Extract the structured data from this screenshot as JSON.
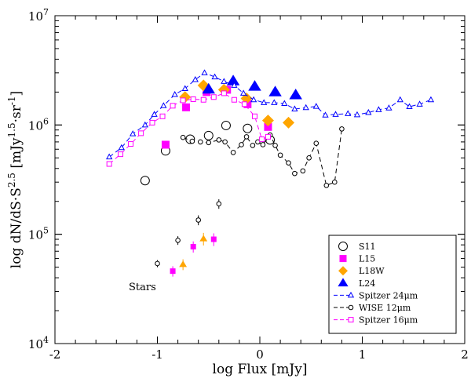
{
  "chart_data": {
    "type": "scatter",
    "xlabel": "log Flux [mJy]",
    "ylabel_parts": [
      "log dN/dS·S",
      "2.5",
      " [mJy",
      "1.5",
      "·sr",
      "-1",
      "]"
    ],
    "xlim": [
      -2,
      2
    ],
    "ylim_log10": [
      4,
      7
    ],
    "x_ticks": [
      {
        "value": -2,
        "label": "-2"
      },
      {
        "value": -1,
        "label": "-1"
      },
      {
        "value": 0,
        "label": "0"
      },
      {
        "value": 1,
        "label": "1"
      },
      {
        "value": 2,
        "label": "2"
      }
    ],
    "y_ticks": [
      {
        "exp": 4,
        "base": "10",
        "sup": "4"
      },
      {
        "exp": 5,
        "base": "10",
        "sup": "5"
      },
      {
        "exp": 6,
        "base": "10",
        "sup": "6"
      },
      {
        "exp": 7,
        "base": "10",
        "sup": "7"
      }
    ],
    "annotations": [
      {
        "text": "Stars",
        "x": -1.3,
        "y": 33000
      }
    ],
    "colors": {
      "magenta": "#ff00ff",
      "orange": "#ffa500",
      "blue": "#0000ff",
      "black": "#000000"
    },
    "series": [
      {
        "name": "S11",
        "kind": "markers",
        "marker": "circle-open",
        "color": "#000000",
        "size": 11,
        "points": [
          [
            -1.12,
            310000
          ],
          [
            -0.92,
            580000
          ],
          [
            -0.68,
            740000
          ],
          [
            -0.5,
            800000
          ],
          [
            -0.33,
            990000
          ],
          [
            -0.12,
            930000
          ],
          [
            0.1,
            730000
          ]
        ]
      },
      {
        "name": "L15",
        "kind": "markers",
        "marker": "square",
        "color": "#ff00ff",
        "size": 10,
        "points": [
          [
            -0.92,
            660000
          ],
          [
            -0.72,
            1450000
          ],
          [
            -0.52,
            2000000
          ],
          [
            -0.32,
            2100000
          ],
          [
            -0.12,
            1550000
          ],
          [
            0.08,
            960000
          ]
        ]
      },
      {
        "name": "L18W",
        "kind": "markers",
        "marker": "diamond",
        "color": "#ffa500",
        "size": 15,
        "points": [
          [
            -0.73,
            1800000
          ],
          [
            -0.55,
            2300000
          ],
          [
            -0.35,
            2100000
          ],
          [
            -0.13,
            1750000
          ],
          [
            0.08,
            1100000
          ],
          [
            0.28,
            1050000
          ]
        ]
      },
      {
        "name": "L24",
        "kind": "markers",
        "marker": "triangle-filled",
        "color": "#0000ff",
        "size": 15,
        "points": [
          [
            -0.5,
            2120000
          ],
          [
            -0.26,
            2520000
          ],
          [
            -0.05,
            2250000
          ],
          [
            0.15,
            2000000
          ],
          [
            0.35,
            1880000
          ]
        ]
      },
      {
        "name": "Spitzer 24μm",
        "kind": "line",
        "marker": "triangle-open",
        "color": "#0000ff",
        "dash": "6,4",
        "points": [
          [
            -1.47,
            510000
          ],
          [
            -1.35,
            620000
          ],
          [
            -1.24,
            830000
          ],
          [
            -1.12,
            1000000
          ],
          [
            -1.03,
            1250000
          ],
          [
            -0.94,
            1500000
          ],
          [
            -0.83,
            1900000
          ],
          [
            -0.73,
            2150000
          ],
          [
            -0.63,
            2600000
          ],
          [
            -0.54,
            3000000
          ],
          [
            -0.44,
            2750000
          ],
          [
            -0.35,
            2500000
          ],
          [
            -0.25,
            2300000
          ],
          [
            -0.16,
            1950000
          ],
          [
            -0.06,
            1700000
          ],
          [
            0.04,
            1600000
          ],
          [
            0.14,
            1600000
          ],
          [
            0.24,
            1570000
          ],
          [
            0.34,
            1400000
          ],
          [
            0.45,
            1440000
          ],
          [
            0.55,
            1480000
          ],
          [
            0.64,
            1230000
          ],
          [
            0.74,
            1250000
          ],
          [
            0.86,
            1270000
          ],
          [
            0.95,
            1240000
          ],
          [
            1.06,
            1300000
          ],
          [
            1.16,
            1380000
          ],
          [
            1.26,
            1430000
          ],
          [
            1.37,
            1700000
          ],
          [
            1.46,
            1470000
          ],
          [
            1.56,
            1550000
          ],
          [
            1.67,
            1700000
          ]
        ]
      },
      {
        "name": "WISE 12μm",
        "kind": "line",
        "marker": "circle-open-small",
        "color": "#000000",
        "dash": "6,4",
        "points": [
          [
            -0.75,
            770000
          ],
          [
            -0.66,
            710000
          ],
          [
            -0.58,
            700000
          ],
          [
            -0.5,
            690000
          ],
          [
            -0.4,
            730000
          ],
          [
            -0.34,
            700000
          ],
          [
            -0.26,
            560000
          ],
          [
            -0.18,
            660000
          ],
          [
            -0.13,
            780000
          ],
          [
            -0.07,
            650000
          ],
          [
            -0.02,
            700000
          ],
          [
            0.03,
            660000
          ],
          [
            0.1,
            810000
          ],
          [
            0.15,
            650000
          ],
          [
            0.2,
            530000
          ],
          [
            0.28,
            450000
          ],
          [
            0.34,
            360000
          ],
          [
            0.42,
            380000
          ],
          [
            0.48,
            500000
          ],
          [
            0.55,
            680000
          ],
          [
            0.65,
            280000
          ],
          [
            0.73,
            300000
          ],
          [
            0.8,
            920000
          ]
        ]
      },
      {
        "name": "Spitzer 16μm",
        "kind": "line",
        "marker": "square-open",
        "color": "#ff00ff",
        "dash": "6,4",
        "points": [
          [
            -1.47,
            440000
          ],
          [
            -1.36,
            540000
          ],
          [
            -1.26,
            670000
          ],
          [
            -1.16,
            840000
          ],
          [
            -1.05,
            1050000
          ],
          [
            -0.95,
            1200000
          ],
          [
            -0.85,
            1500000
          ],
          [
            -0.75,
            1680000
          ],
          [
            -0.65,
            1720000
          ],
          [
            -0.55,
            1700000
          ],
          [
            -0.45,
            1800000
          ],
          [
            -0.35,
            1950000
          ],
          [
            -0.25,
            1700000
          ],
          [
            -0.15,
            1550000
          ],
          [
            -0.05,
            1200000
          ],
          [
            0.02,
            740000
          ],
          [
            0.08,
            780000
          ]
        ]
      },
      {
        "name": "Stars-S11",
        "kind": "errorbars",
        "marker": "circle-open-small",
        "color": "#000000",
        "points": [
          [
            -1.0,
            54000,
            4000
          ],
          [
            -0.8,
            88000,
            8000
          ],
          [
            -0.6,
            135000,
            14000
          ],
          [
            -0.4,
            190000,
            19000
          ]
        ]
      },
      {
        "name": "Stars-L15",
        "kind": "errorbars",
        "marker": "square",
        "color": "#ff00ff",
        "points": [
          [
            -0.85,
            46000,
            5000
          ],
          [
            -0.65,
            77000,
            9000
          ],
          [
            -0.45,
            90000,
            12000
          ]
        ]
      },
      {
        "name": "Stars-L18W",
        "kind": "errorbars",
        "marker": "triangle-filled",
        "color": "#ffa500",
        "points": [
          [
            -0.75,
            53000,
            6000
          ],
          [
            -0.55,
            91000,
            12000
          ]
        ]
      }
    ]
  },
  "legend": {
    "items": [
      {
        "label": "S11",
        "marker": "circle-open",
        "color": "#000000",
        "line": false
      },
      {
        "label": "L15",
        "marker": "square",
        "color": "#ff00ff",
        "line": false
      },
      {
        "label": "L18W",
        "marker": "diamond",
        "color": "#ffa500",
        "line": false
      },
      {
        "label": "L24",
        "marker": "triangle-filled",
        "color": "#0000ff",
        "line": false
      },
      {
        "label": "Spitzer 24μm",
        "marker": "triangle-open",
        "color": "#0000ff",
        "line": true
      },
      {
        "label": "WISE 12μm",
        "marker": "circle-open-small",
        "color": "#000000",
        "line": true
      },
      {
        "label": "Spitzer 16μm",
        "marker": "square-open",
        "color": "#ff00ff",
        "line": true
      }
    ]
  }
}
